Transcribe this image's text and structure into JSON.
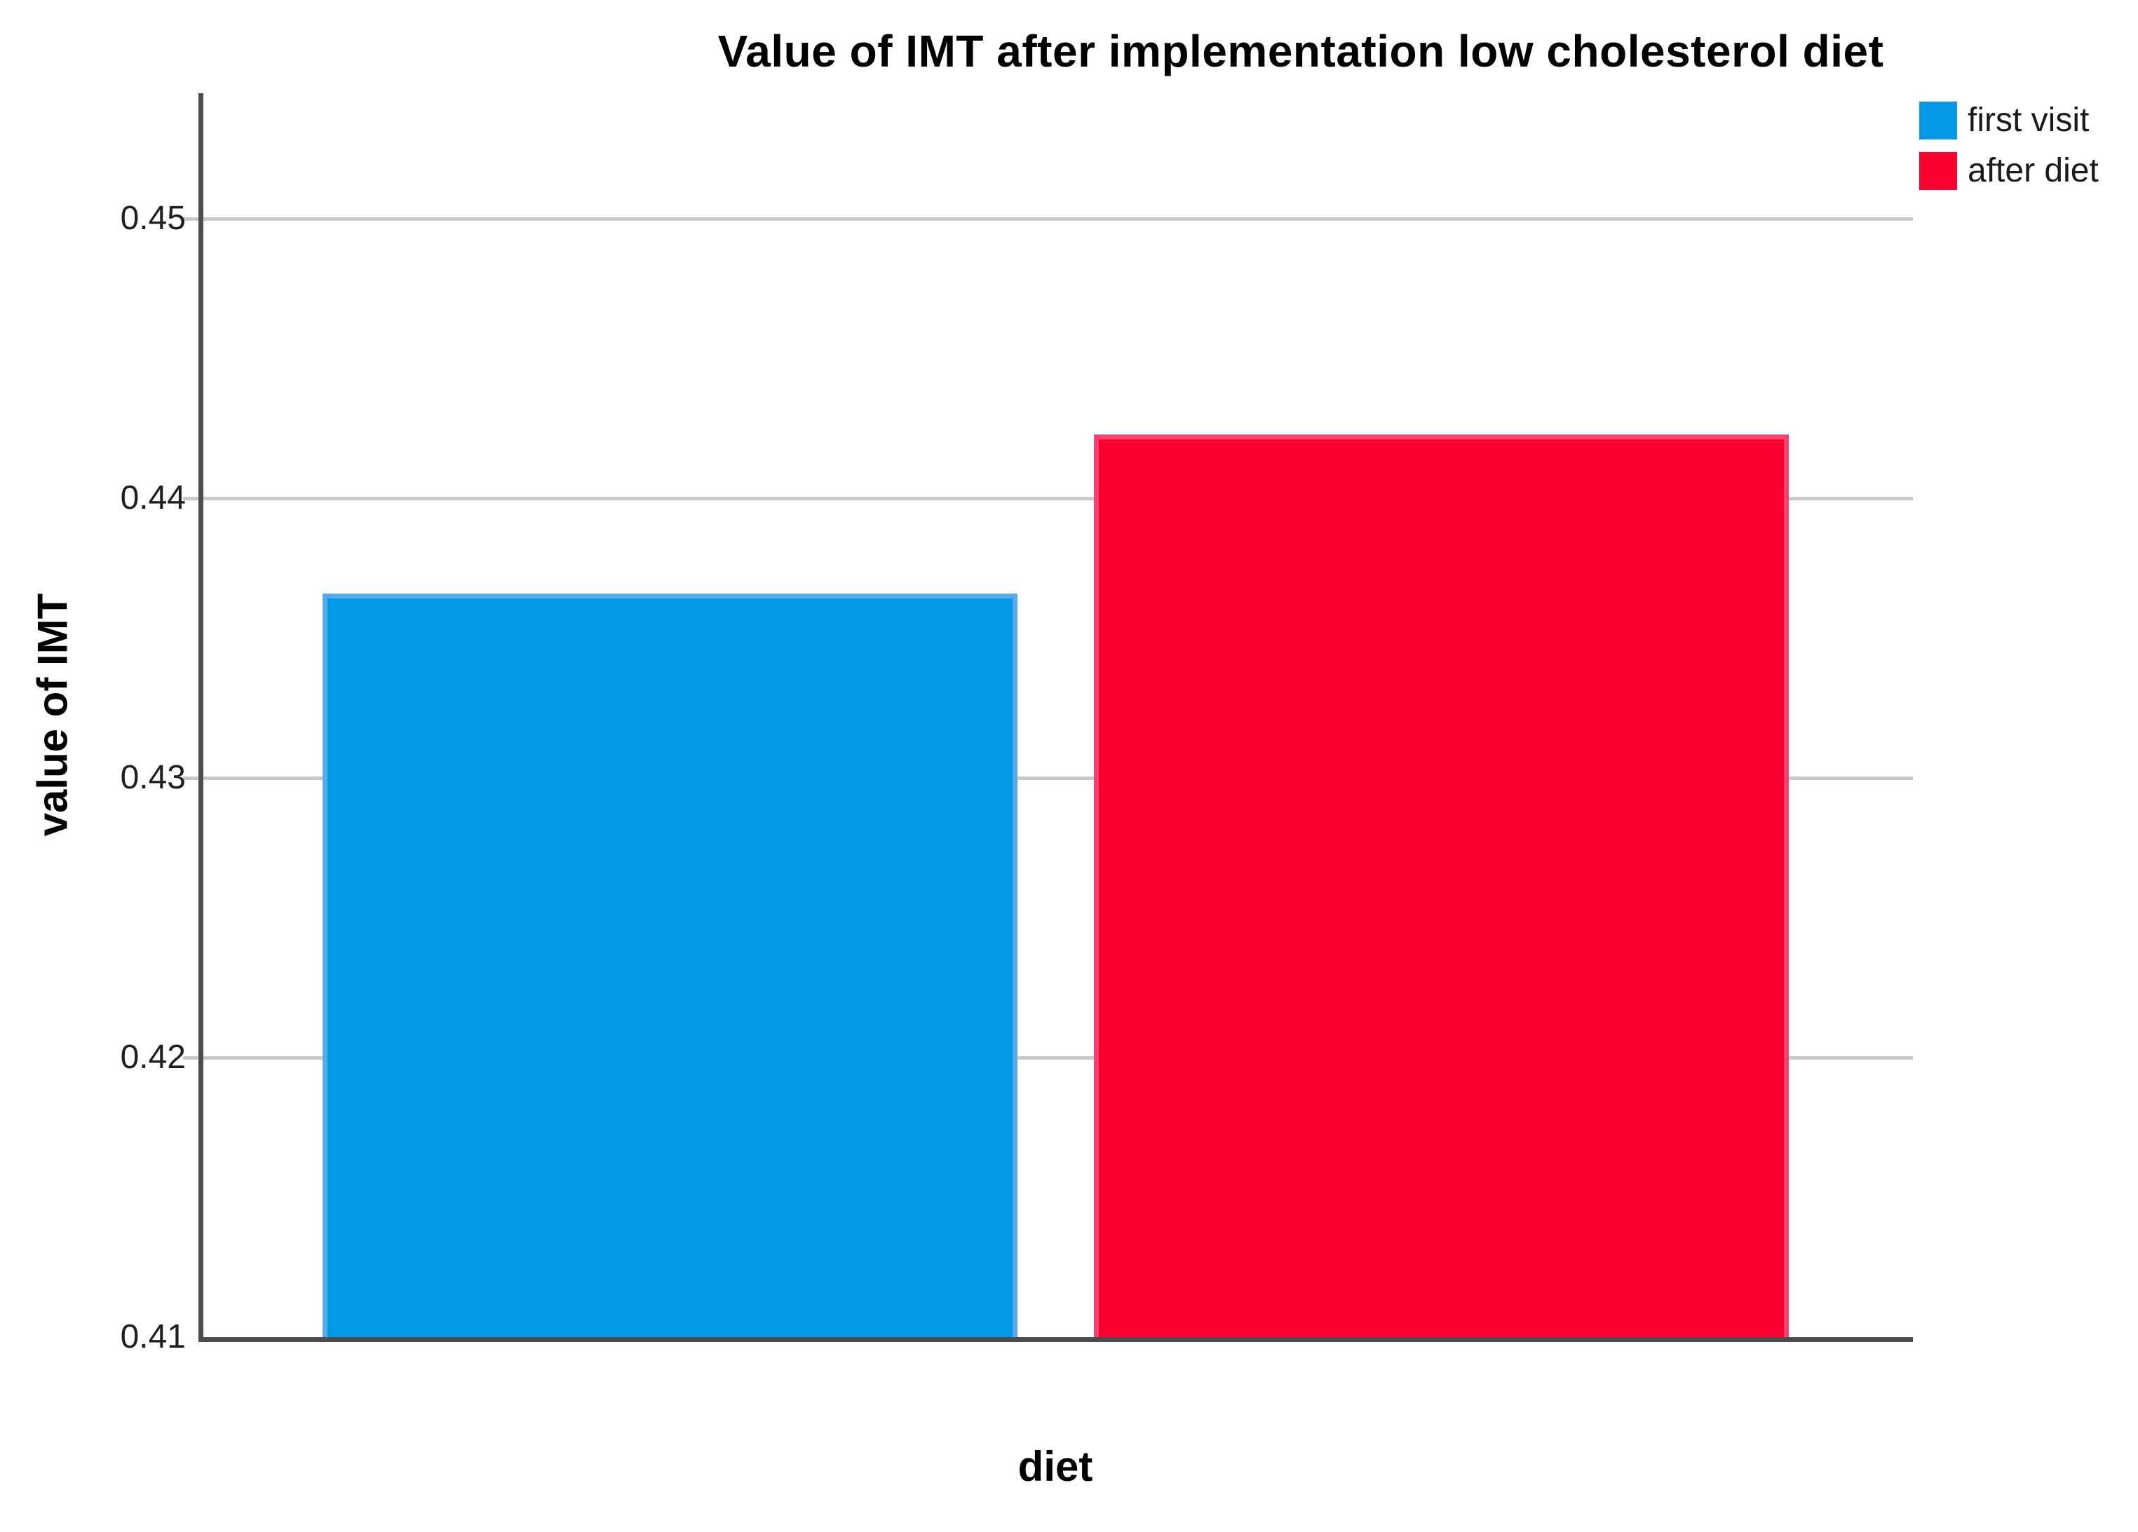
{
  "chart_data": {
    "type": "bar",
    "title": "Value of IMT after implementation low cholesterol diet",
    "xlabel": "diet",
    "ylabel": "value of IMT",
    "categories": [
      "first visit",
      "after diet"
    ],
    "values": [
      0.4366,
      0.4423
    ],
    "colors": [
      "#0598e6",
      "#fa0132"
    ],
    "bar_border_colors": [
      "#55aae9",
      "#f5426e"
    ],
    "yticks": [
      0.41,
      0.42,
      0.43,
      0.44,
      0.45
    ],
    "ytick_labels": [
      "0.41",
      "0.42",
      "0.43",
      "0.44",
      "0.45"
    ],
    "ylim": [
      0.41,
      0.4545
    ],
    "grid": true,
    "background_color": "#ffffff",
    "axis_color": "#4c4c4c",
    "gridline_color": "#c9c9c9",
    "legend": {
      "position": "top-right",
      "items": [
        {
          "label": "first visit",
          "color": "#0598e6"
        },
        {
          "label": "after diet",
          "color": "#fa0132"
        }
      ]
    }
  }
}
